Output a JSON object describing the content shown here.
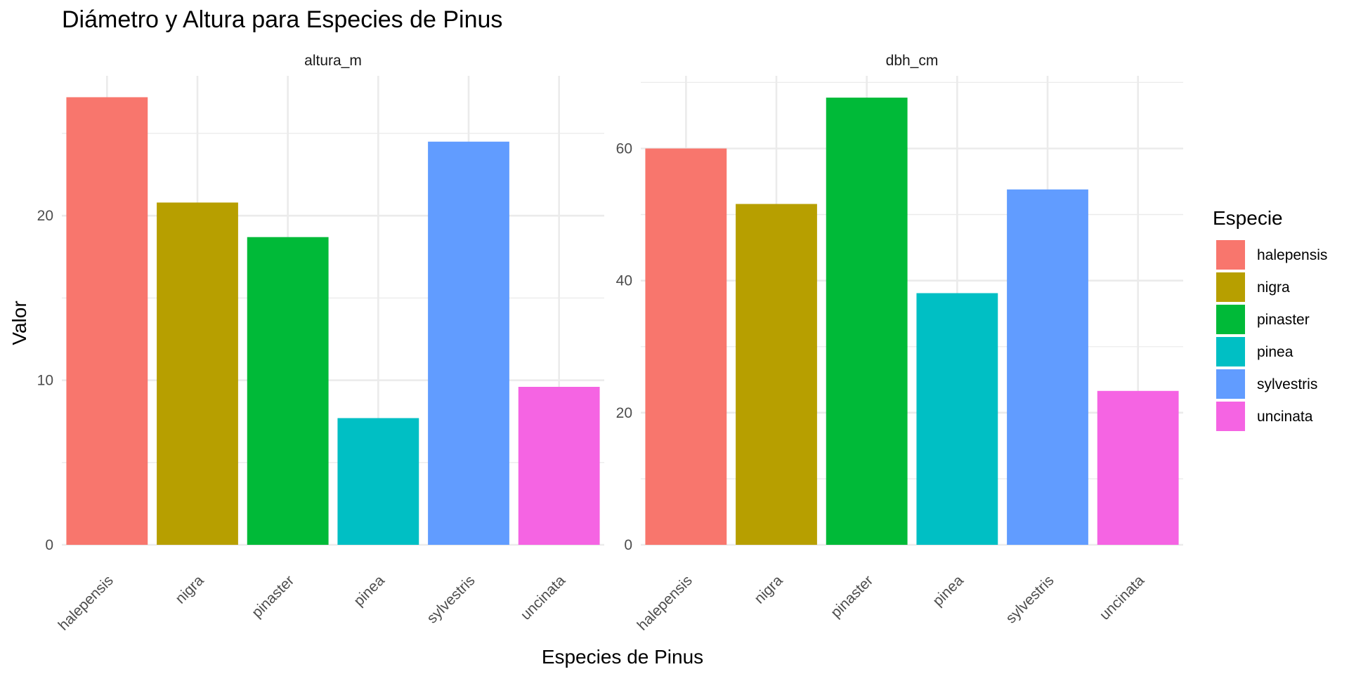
{
  "chart_data": {
    "type": "bar",
    "title": "Diámetro y Altura para Especies de Pinus",
    "xlabel": "Especies de Pinus",
    "ylabel": "Valor",
    "grid": true,
    "legend_position": "right",
    "legend": {
      "title": "Especie",
      "items": [
        {
          "label": "halepensis",
          "color": "#F8766D"
        },
        {
          "label": "nigra",
          "color": "#B79F00"
        },
        {
          "label": "pinaster",
          "color": "#00BA38"
        },
        {
          "label": "pinea",
          "color": "#00BFC4"
        },
        {
          "label": "sylvestris",
          "color": "#619CFF"
        },
        {
          "label": "uncinata",
          "color": "#F564E3"
        }
      ]
    },
    "categories": [
      "halepensis",
      "nigra",
      "pinaster",
      "pinea",
      "sylvestris",
      "uncinata"
    ],
    "panels": [
      {
        "strip": "altura_m",
        "ylim": [
          0,
          28.5
        ],
        "major_ticks": [
          0,
          10,
          20
        ],
        "minor_ticks": [
          5,
          15,
          25
        ],
        "values": [
          27.2,
          20.8,
          18.7,
          7.7,
          24.5,
          9.6
        ]
      },
      {
        "strip": "dbh_cm",
        "ylim": [
          0,
          71
        ],
        "major_ticks": [
          0,
          20,
          40,
          60
        ],
        "minor_ticks": [
          10,
          30,
          50,
          70
        ],
        "values": [
          60.0,
          51.6,
          67.7,
          38.1,
          53.8,
          23.3
        ]
      }
    ]
  }
}
